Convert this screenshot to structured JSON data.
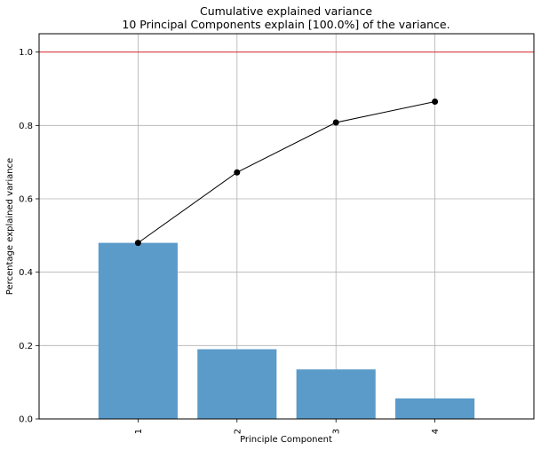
{
  "chart_data": {
    "type": "bar+line",
    "title": "Cumulative explained variance",
    "subtitle": "10 Principal Components explain [100.0%] of the variance.",
    "xlabel": "Principle Component",
    "ylabel": "Percentage explained variance",
    "categories": [
      "1",
      "2",
      "3",
      "4"
    ],
    "ylim": [
      0,
      1.05
    ],
    "xlim": [
      0,
      5
    ],
    "yticks": [
      "0.0",
      "0.2",
      "0.4",
      "0.6",
      "0.8",
      "1.0"
    ],
    "grid": true,
    "series": [
      {
        "type": "bar",
        "values": [
          0.48,
          0.19,
          0.135,
          0.056
        ],
        "color": "#5b9bc9"
      },
      {
        "type": "line",
        "values": [
          0.48,
          0.672,
          0.808,
          0.865
        ],
        "color": "#000000"
      }
    ],
    "reference_line": {
      "y": 1.0,
      "color": "#e03030"
    }
  }
}
